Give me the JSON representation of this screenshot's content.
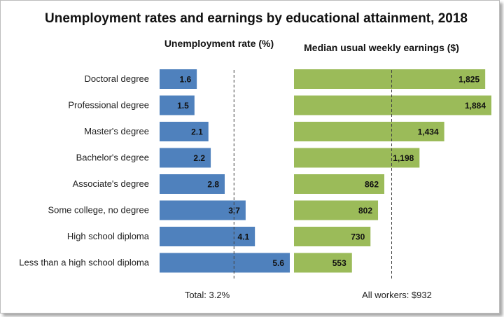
{
  "chart_data": {
    "type": "bar",
    "title": "Unemployment rates and earnings by educational attainment, 2018",
    "categories": [
      "Doctoral degree",
      "Professional degree",
      "Master's degree",
      "Bachelor's degree",
      "Associate's degree",
      "Some college, no degree",
      "High school diploma",
      "Less than a high school diploma"
    ],
    "series": [
      {
        "name": "Unemployment rate (%)",
        "values": [
          1.6,
          1.5,
          2.1,
          2.2,
          2.8,
          3.7,
          4.1,
          5.6
        ],
        "labels": [
          "1.6",
          "1.5",
          "2.1",
          "2.2",
          "2.8",
          "3.7",
          "4.1",
          "5.6"
        ],
        "color": "#4f81bd",
        "reference_value": 3.2,
        "reference_label": "Total: 3.2%"
      },
      {
        "name": "Median usual weekly earnings ($)",
        "values": [
          1825,
          1884,
          1434,
          1198,
          862,
          802,
          730,
          553
        ],
        "labels": [
          "1,825",
          "1,884",
          "1,434",
          "1,198",
          "862",
          "802",
          "730",
          "553"
        ],
        "color": "#9bbb59",
        "reference_value": 932,
        "reference_label": "All workers: $932"
      }
    ],
    "orientation": "horizontal",
    "reference_lines": "dashed",
    "grid": false,
    "legend": "none"
  }
}
